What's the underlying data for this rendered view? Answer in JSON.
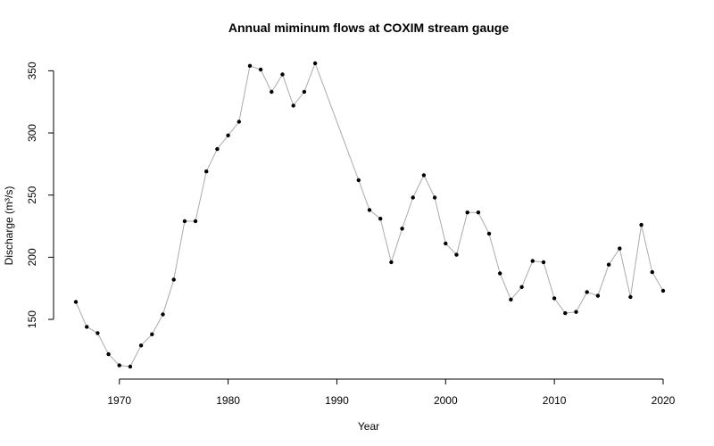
{
  "chart_data": {
    "type": "line",
    "title": "Annual miminum flows at COXIM stream gauge",
    "xlabel": "Year",
    "ylabel": "Discharge (m³/s)",
    "xlim": [
      1966,
      2020
    ],
    "ylim": [
      112,
      356
    ],
    "xticks": [
      1970,
      1980,
      1990,
      2000,
      2010,
      2020
    ],
    "yticks": [
      150,
      200,
      250,
      300,
      350
    ],
    "grid": false,
    "legend": "none",
    "colors": {
      "line": "#aaaaaa",
      "point": "#000000"
    },
    "x": [
      1966,
      1967,
      1968,
      1969,
      1970,
      1971,
      1972,
      1973,
      1974,
      1975,
      1976,
      1977,
      1978,
      1979,
      1980,
      1981,
      1982,
      1983,
      1984,
      1985,
      1986,
      1987,
      1988,
      1992,
      1993,
      1994,
      1995,
      1996,
      1997,
      1998,
      1999,
      2000,
      2001,
      2002,
      2003,
      2004,
      2005,
      2006,
      2007,
      2008,
      2009,
      2010,
      2011,
      2012,
      2013,
      2014,
      2015,
      2016,
      2017,
      2018,
      2019,
      2020
    ],
    "y": [
      164,
      144,
      139,
      122,
      113,
      112,
      129,
      138,
      154,
      182,
      229,
      229,
      269,
      287,
      298,
      309,
      354,
      351,
      333,
      347,
      322,
      333,
      356,
      262,
      238,
      231,
      196,
      223,
      248,
      266,
      248,
      211,
      202,
      236,
      236,
      219,
      187,
      166,
      176,
      197,
      196,
      167,
      155,
      156,
      172,
      169,
      194,
      207,
      168,
      226,
      188,
      173
    ]
  }
}
